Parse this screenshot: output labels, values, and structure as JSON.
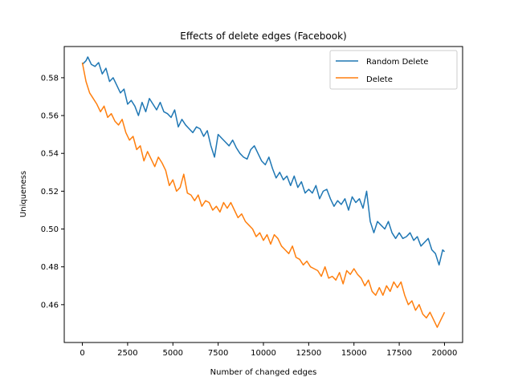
{
  "chart_data": {
    "type": "line",
    "title": "Effects of delete edges (Facebook)",
    "xlabel": "Number of changed edges",
    "ylabel": "Uniqueness",
    "xlim": [
      -1000,
      21000
    ],
    "ylim": [
      0.44,
      0.5965
    ],
    "xticks": [
      0,
      2500,
      5000,
      7500,
      10000,
      12500,
      15000,
      17500,
      20000
    ],
    "yticks": [
      0.46,
      0.48,
      0.5,
      0.52,
      0.54,
      0.56,
      0.58
    ],
    "ytick_labels": [
      "0.46",
      "0.48",
      "0.50",
      "0.52",
      "0.54",
      "0.56",
      "0.58"
    ],
    "grid": false,
    "legend_position": "upper right",
    "series": [
      {
        "name": "Random Delete",
        "color": "#1f77b4",
        "x": [
          0,
          200,
          300,
          500,
          700,
          900,
          1100,
          1300,
          1500,
          1700,
          1900,
          2100,
          2300,
          2500,
          2700,
          2900,
          3100,
          3300,
          3500,
          3700,
          3900,
          4100,
          4300,
          4500,
          4700,
          4900,
          5100,
          5300,
          5500,
          5700,
          5900,
          6100,
          6300,
          6500,
          6700,
          6900,
          7100,
          7300,
          7500,
          7700,
          7900,
          8100,
          8300,
          8500,
          8700,
          8900,
          9100,
          9300,
          9500,
          9700,
          9900,
          10100,
          10300,
          10500,
          10700,
          10900,
          11100,
          11300,
          11500,
          11700,
          11900,
          12100,
          12300,
          12500,
          12700,
          12900,
          13100,
          13300,
          13500,
          13700,
          13900,
          14100,
          14300,
          14500,
          14700,
          14900,
          15100,
          15300,
          15500,
          15700,
          15900,
          16100,
          16300,
          16500,
          16700,
          16900,
          17100,
          17300,
          17500,
          17700,
          17900,
          18100,
          18300,
          18500,
          18700,
          18900,
          19100,
          19300,
          19500,
          19700,
          19900,
          20000
        ],
        "y": [
          0.587,
          0.589,
          0.591,
          0.587,
          0.586,
          0.588,
          0.582,
          0.585,
          0.578,
          0.58,
          0.576,
          0.572,
          0.574,
          0.566,
          0.568,
          0.565,
          0.56,
          0.567,
          0.562,
          0.569,
          0.566,
          0.563,
          0.567,
          0.562,
          0.561,
          0.559,
          0.563,
          0.554,
          0.558,
          0.555,
          0.553,
          0.551,
          0.554,
          0.553,
          0.549,
          0.552,
          0.544,
          0.538,
          0.55,
          0.548,
          0.546,
          0.544,
          0.547,
          0.543,
          0.54,
          0.538,
          0.537,
          0.542,
          0.544,
          0.54,
          0.536,
          0.534,
          0.538,
          0.532,
          0.527,
          0.53,
          0.526,
          0.528,
          0.523,
          0.528,
          0.522,
          0.525,
          0.519,
          0.521,
          0.519,
          0.523,
          0.516,
          0.52,
          0.521,
          0.516,
          0.512,
          0.515,
          0.513,
          0.516,
          0.51,
          0.517,
          0.514,
          0.516,
          0.511,
          0.52,
          0.504,
          0.498,
          0.504,
          0.502,
          0.5,
          0.504,
          0.498,
          0.495,
          0.498,
          0.495,
          0.496,
          0.498,
          0.494,
          0.496,
          0.491,
          0.493,
          0.495,
          0.489,
          0.487,
          0.481,
          0.489,
          0.488
        ]
      },
      {
        "name": "Delete",
        "color": "#ff7f0e",
        "x": [
          0,
          200,
          400,
          600,
          800,
          1000,
          1200,
          1400,
          1600,
          1800,
          2000,
          2200,
          2400,
          2600,
          2800,
          3000,
          3200,
          3400,
          3600,
          3800,
          4000,
          4200,
          4400,
          4600,
          4800,
          5000,
          5200,
          5400,
          5600,
          5800,
          6000,
          6200,
          6400,
          6600,
          6800,
          7000,
          7200,
          7400,
          7600,
          7800,
          8000,
          8200,
          8400,
          8600,
          8800,
          9000,
          9200,
          9400,
          9600,
          9800,
          10000,
          10200,
          10400,
          10600,
          10800,
          11000,
          11200,
          11400,
          11600,
          11800,
          12000,
          12200,
          12400,
          12600,
          12800,
          13000,
          13200,
          13400,
          13600,
          13800,
          14000,
          14200,
          14400,
          14600,
          14800,
          15000,
          15200,
          15400,
          15600,
          15800,
          16000,
          16200,
          16400,
          16600,
          16800,
          17000,
          17200,
          17400,
          17600,
          17800,
          18000,
          18200,
          18400,
          18600,
          18800,
          19000,
          19200,
          19400,
          19600,
          19800,
          20000
        ],
        "y": [
          0.588,
          0.578,
          0.572,
          0.569,
          0.566,
          0.562,
          0.565,
          0.559,
          0.561,
          0.557,
          0.555,
          0.558,
          0.551,
          0.547,
          0.549,
          0.542,
          0.544,
          0.536,
          0.541,
          0.537,
          0.533,
          0.538,
          0.535,
          0.531,
          0.523,
          0.526,
          0.52,
          0.522,
          0.529,
          0.519,
          0.518,
          0.515,
          0.518,
          0.512,
          0.515,
          0.514,
          0.51,
          0.512,
          0.509,
          0.514,
          0.511,
          0.514,
          0.51,
          0.506,
          0.508,
          0.504,
          0.502,
          0.5,
          0.496,
          0.498,
          0.494,
          0.497,
          0.492,
          0.497,
          0.495,
          0.491,
          0.489,
          0.487,
          0.491,
          0.485,
          0.484,
          0.481,
          0.483,
          0.48,
          0.479,
          0.478,
          0.475,
          0.48,
          0.474,
          0.475,
          0.473,
          0.477,
          0.471,
          0.478,
          0.476,
          0.479,
          0.476,
          0.474,
          0.47,
          0.473,
          0.467,
          0.465,
          0.469,
          0.465,
          0.47,
          0.467,
          0.472,
          0.469,
          0.472,
          0.465,
          0.46,
          0.462,
          0.457,
          0.46,
          0.455,
          0.453,
          0.456,
          0.452,
          0.448,
          0.452,
          0.456
        ]
      }
    ]
  }
}
